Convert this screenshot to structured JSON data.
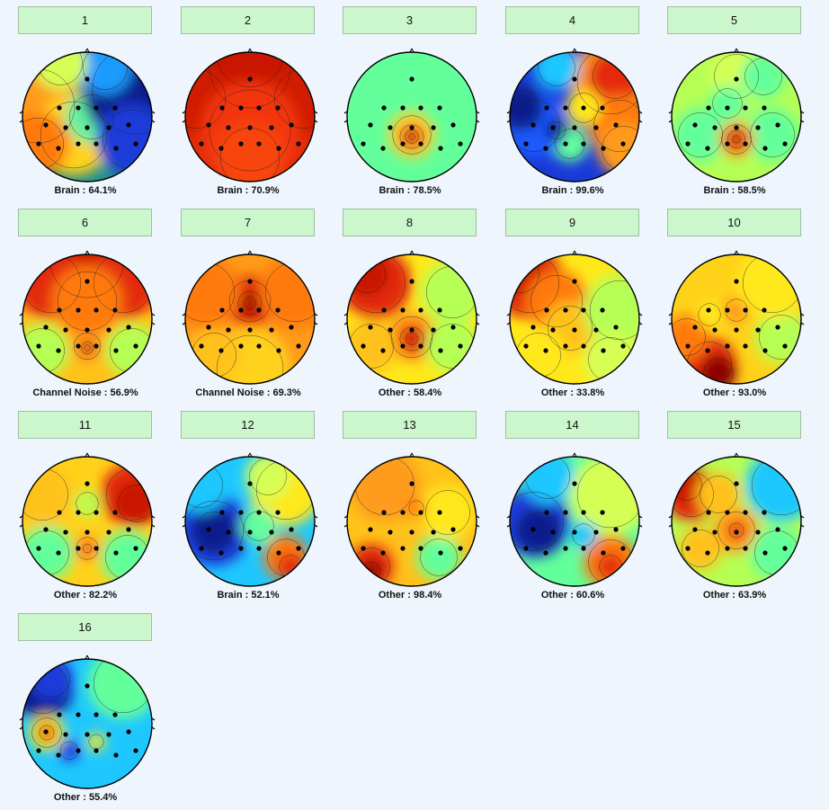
{
  "window": {
    "background": "#eef5fd",
    "button_color": "#ccf7cc"
  },
  "electrodes": [
    [
      0,
      -42
    ],
    [
      -31,
      -10
    ],
    [
      -10,
      -10
    ],
    [
      10,
      -10
    ],
    [
      31,
      -10
    ],
    [
      -46,
      9
    ],
    [
      -24,
      12
    ],
    [
      0,
      12
    ],
    [
      24,
      12
    ],
    [
      46,
      9
    ],
    [
      -54,
      30
    ],
    [
      -32,
      35
    ],
    [
      -10,
      30
    ],
    [
      10,
      30
    ],
    [
      32,
      35
    ],
    [
      54,
      30
    ]
  ],
  "components": [
    {
      "label": "1",
      "classification": "Brain : 64.1%",
      "background": "#1f8f8f",
      "blobs": [
        [
          -55,
          -12,
          50,
          "#ff9b1a"
        ],
        [
          -15,
          20,
          45,
          "#ffd21a"
        ],
        [
          5,
          0,
          30,
          "#63f0a0"
        ],
        [
          55,
          -30,
          60,
          "#0a1a8c"
        ],
        [
          50,
          25,
          40,
          "#1a3ad8"
        ],
        [
          20,
          -55,
          30,
          "#1e9bff"
        ],
        [
          -30,
          -60,
          30,
          "#d6ff55"
        ],
        [
          -55,
          30,
          35,
          "#ff7a0a"
        ]
      ]
    },
    {
      "label": "2",
      "classification": "Brain : 70.9%",
      "background": "#e32b0c",
      "blobs": [
        [
          0,
          -70,
          45,
          "#b80000"
        ],
        [
          0,
          -55,
          55,
          "#c91503"
        ],
        [
          -60,
          -20,
          40,
          "#d01a05"
        ],
        [
          60,
          -20,
          40,
          "#d01a05"
        ],
        [
          0,
          15,
          55,
          "#f2360e"
        ],
        [
          0,
          45,
          40,
          "#f7450f"
        ]
      ]
    },
    {
      "label": "3",
      "classification": "Brain : 78.5%",
      "background": "#63ff9b",
      "blobs": [
        [
          0,
          20,
          26,
          "#ffd430"
        ],
        [
          0,
          22,
          16,
          "#ff8a19"
        ],
        [
          0,
          22,
          9,
          "#d81e05"
        ],
        [
          0,
          22,
          4,
          "#8c0000"
        ]
      ]
    },
    {
      "label": "4",
      "classification": "Brain : 99.6%",
      "background": "#1a3ad8",
      "blobs": [
        [
          40,
          -40,
          45,
          "#ff9b1a"
        ],
        [
          45,
          -45,
          30,
          "#e32b0c"
        ],
        [
          50,
          10,
          35,
          "#ff7a0a"
        ],
        [
          55,
          35,
          30,
          "#ff9b1a"
        ],
        [
          10,
          -10,
          20,
          "#ffe81a"
        ],
        [
          -5,
          30,
          20,
          "#63ff9b"
        ],
        [
          -45,
          10,
          35,
          "#1a5aff"
        ],
        [
          -60,
          -10,
          25,
          "#0a1a8c"
        ],
        [
          -20,
          15,
          12,
          "#0a1a8c"
        ],
        [
          -20,
          -55,
          25,
          "#1ec8ff"
        ]
      ]
    },
    {
      "label": "5",
      "classification": "Brain : 58.5%",
      "background": "#b5ff55",
      "blobs": [
        [
          0,
          -45,
          30,
          "#d6ff55"
        ],
        [
          30,
          -45,
          25,
          "#63ff9b"
        ],
        [
          -10,
          -15,
          20,
          "#63ff9b"
        ],
        [
          -40,
          20,
          30,
          "#63ff9b"
        ],
        [
          40,
          20,
          30,
          "#63ff9b"
        ],
        [
          0,
          25,
          20,
          "#ff9b1a"
        ],
        [
          0,
          25,
          12,
          "#e32b0c"
        ],
        [
          0,
          25,
          5,
          "#8c0000"
        ]
      ]
    },
    {
      "label": "6",
      "classification": "Channel Noise : 56.9%",
      "background": "#ffc21a",
      "blobs": [
        [
          0,
          -65,
          50,
          "#c91503"
        ],
        [
          -40,
          -40,
          40,
          "#e32b0c"
        ],
        [
          40,
          -40,
          40,
          "#e32b0c"
        ],
        [
          0,
          -20,
          40,
          "#ff7a0a"
        ],
        [
          -50,
          35,
          30,
          "#b5ff55"
        ],
        [
          50,
          35,
          30,
          "#b5ff55"
        ],
        [
          0,
          30,
          18,
          "#ff9b1a"
        ],
        [
          0,
          32,
          8,
          "#e32b0c"
        ],
        [
          0,
          32,
          4,
          "#8c0000"
        ]
      ]
    },
    {
      "label": "7",
      "classification": "Channel Noise : 69.3%",
      "background": "#ff9b1a",
      "blobs": [
        [
          0,
          -20,
          28,
          "#e32b0c"
        ],
        [
          0,
          -18,
          16,
          "#c91503"
        ],
        [
          0,
          -18,
          8,
          "#8c0000"
        ],
        [
          -50,
          -30,
          40,
          "#ff7a0a"
        ],
        [
          50,
          -30,
          40,
          "#ff7a0a"
        ],
        [
          0,
          55,
          45,
          "#ffd21a"
        ],
        [
          -40,
          40,
          30,
          "#ffc21a"
        ]
      ]
    },
    {
      "label": "8",
      "classification": "Other : 58.4%",
      "background": "#ffe81a",
      "blobs": [
        [
          -40,
          -40,
          40,
          "#e32b0c"
        ],
        [
          -50,
          -50,
          25,
          "#c91503"
        ],
        [
          0,
          20,
          28,
          "#ff9b1a"
        ],
        [
          0,
          22,
          16,
          "#e32b0c"
        ],
        [
          0,
          22,
          8,
          "#c91503"
        ],
        [
          45,
          -30,
          35,
          "#b5ff55"
        ],
        [
          45,
          30,
          30,
          "#b5ff55"
        ],
        [
          -45,
          30,
          30,
          "#ffc21a"
        ]
      ]
    },
    {
      "label": "9",
      "classification": "Other : 33.8%",
      "background": "#ffe81a",
      "blobs": [
        [
          -50,
          -40,
          40,
          "#e32b0c"
        ],
        [
          -60,
          -50,
          25,
          "#c91503"
        ],
        [
          -20,
          -20,
          35,
          "#ff7a0a"
        ],
        [
          -5,
          10,
          30,
          "#ffc21a"
        ],
        [
          50,
          -10,
          40,
          "#b5ff55"
        ],
        [
          40,
          45,
          30,
          "#d6ff55"
        ],
        [
          -40,
          40,
          30,
          "#ffe81a"
        ]
      ]
    },
    {
      "label": "10",
      "classification": "Other : 93.0%",
      "background": "#ffd21a",
      "blobs": [
        [
          -30,
          50,
          30,
          "#e32b0c"
        ],
        [
          -20,
          60,
          20,
          "#8c0000"
        ],
        [
          -55,
          20,
          25,
          "#ff7a0a"
        ],
        [
          0,
          -10,
          15,
          "#ff9b1a"
        ],
        [
          50,
          20,
          30,
          "#b5ff55"
        ],
        [
          -30,
          -5,
          15,
          "#ffe81a"
        ],
        [
          40,
          -40,
          40,
          "#ffe81a"
        ]
      ]
    },
    {
      "label": "11",
      "classification": "Other : 82.2%",
      "background": "#ffd21a",
      "blobs": [
        [
          50,
          -30,
          35,
          "#e32b0c"
        ],
        [
          55,
          -20,
          25,
          "#c91503"
        ],
        [
          -50,
          -30,
          35,
          "#ffc21a"
        ],
        [
          0,
          -20,
          15,
          "#b5ff55"
        ],
        [
          -45,
          35,
          30,
          "#63ff9b"
        ],
        [
          45,
          40,
          30,
          "#63ff9b"
        ],
        [
          0,
          30,
          15,
          "#ff9b1a"
        ],
        [
          0,
          30,
          6,
          "#e32b0c"
        ]
      ]
    },
    {
      "label": "12",
      "classification": "Brain : 52.1%",
      "background": "#1ec8ff",
      "blobs": [
        [
          -40,
          10,
          40,
          "#1a3ad8"
        ],
        [
          -40,
          10,
          25,
          "#0a1a8c"
        ],
        [
          40,
          -35,
          40,
          "#ffe81a"
        ],
        [
          20,
          -50,
          25,
          "#d6ff55"
        ],
        [
          40,
          40,
          25,
          "#ff7a0a"
        ],
        [
          45,
          50,
          15,
          "#e32b0c"
        ],
        [
          -55,
          -40,
          30,
          "#1ec8ff"
        ],
        [
          10,
          5,
          20,
          "#63ff9b"
        ]
      ]
    },
    {
      "label": "13",
      "classification": "Other : 98.4%",
      "background": "#ffc21a",
      "blobs": [
        [
          -30,
          -40,
          40,
          "#ff9b1a"
        ],
        [
          -45,
          50,
          25,
          "#e32b0c"
        ],
        [
          -45,
          55,
          12,
          "#8c0000"
        ],
        [
          30,
          40,
          25,
          "#63ff9b"
        ],
        [
          40,
          -10,
          30,
          "#ffe81a"
        ],
        [
          5,
          -15,
          10,
          "#ff7a0a"
        ]
      ]
    },
    {
      "label": "14",
      "classification": "Other : 60.6%",
      "background": "#63ff9b",
      "blobs": [
        [
          -45,
          0,
          40,
          "#1a3ad8"
        ],
        [
          -40,
          10,
          25,
          "#0a1a8c"
        ],
        [
          -30,
          -50,
          30,
          "#1ec8ff"
        ],
        [
          40,
          -30,
          45,
          "#d6ff55"
        ],
        [
          40,
          45,
          30,
          "#ff7a0a"
        ],
        [
          40,
          50,
          15,
          "#e32b0c"
        ],
        [
          10,
          15,
          15,
          "#1ec8ff"
        ]
      ]
    },
    {
      "label": "15",
      "classification": "Other : 63.9%",
      "background": "#b5ff55",
      "blobs": [
        [
          -50,
          -30,
          30,
          "#e32b0c"
        ],
        [
          -55,
          -40,
          20,
          "#c91503"
        ],
        [
          50,
          -40,
          40,
          "#1ec8ff"
        ],
        [
          0,
          10,
          25,
          "#ff9b1a"
        ],
        [
          0,
          10,
          10,
          "#e32b0c"
        ],
        [
          -20,
          -30,
          25,
          "#ffc21a"
        ],
        [
          45,
          35,
          30,
          "#63ff9b"
        ],
        [
          -40,
          30,
          25,
          "#ffc21a"
        ]
      ]
    },
    {
      "label": "16",
      "classification": "Other : 55.4%",
      "background": "#1ec8ff",
      "blobs": [
        [
          -50,
          -40,
          35,
          "#0a1a8c"
        ],
        [
          -40,
          -50,
          25,
          "#1a3ad8"
        ],
        [
          40,
          -45,
          40,
          "#63ff9b"
        ],
        [
          -45,
          10,
          20,
          "#ffe81a"
        ],
        [
          -45,
          10,
          10,
          "#e32b0c"
        ],
        [
          -20,
          30,
          12,
          "#1a3ad8"
        ],
        [
          10,
          20,
          10,
          "#ffe81a"
        ]
      ]
    }
  ]
}
